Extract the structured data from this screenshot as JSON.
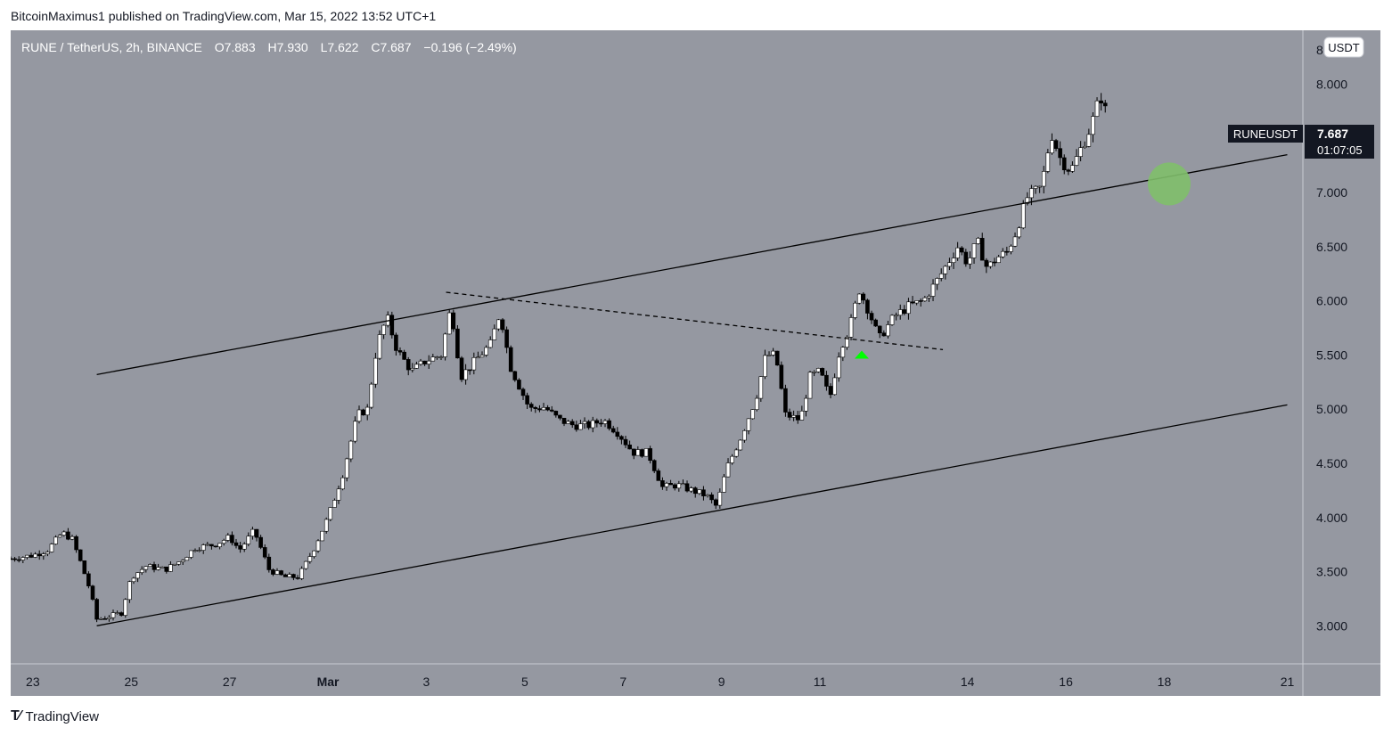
{
  "header": {
    "publisher": "BitcoinMaximus1 published on TradingView.com, Mar 15, 2022 13:52 UTC+1"
  },
  "footer": {
    "brand": "TradingView",
    "logo_icon": "tradingview-logo-icon"
  },
  "symbol_info": {
    "name": "RUNE / TetherUS, 2h, BINANCE",
    "o_label": "O",
    "o_value": "7.883",
    "h_label": "H",
    "h_value": "7.930",
    "l_label": "L",
    "l_value": "7.622",
    "c_label": "C",
    "c_value": "7.687",
    "change": "−0.196 (−2.49%)"
  },
  "price_tag": {
    "ticker": "RUNEUSDT",
    "price": "7.687",
    "countdown": "01:07:05"
  },
  "currency_label": "USDT",
  "colors": {
    "background": "#9598a1",
    "candle_up": "#ffffff",
    "candle_down": "#000000",
    "line": "#000000",
    "marker_arrow": "#00ff00",
    "target_circle": "#7fbf6a"
  },
  "chart_data": {
    "type": "candlestick",
    "title": "",
    "xlabel": "",
    "ylabel": "",
    "ylim": [
      2.55,
      8.4
    ],
    "y_axis": {
      "ticks": [
        3.0,
        3.5,
        4.0,
        4.5,
        5.0,
        5.5,
        6.0,
        6.5,
        7.0,
        7.5,
        8.0
      ],
      "tick_labels": [
        "3.000",
        "3.500",
        "4.000",
        "4.500",
        "5.000",
        "5.500",
        "6.000",
        "6.500",
        "7.000",
        "7.500",
        "8.000"
      ],
      "top_label": "8"
    },
    "x_axis": {
      "range_days": [
        22.55,
        39.3
      ],
      "tick_days": [
        23,
        25,
        27,
        29,
        31,
        33,
        35,
        37,
        39,
        42,
        44,
        46,
        48.5
      ],
      "tick_labels": [
        "23",
        "25",
        "27",
        "Mar",
        "3",
        "5",
        "7",
        "9",
        "11",
        "14",
        "16",
        "18",
        "21"
      ]
    },
    "price_path": [
      {
        "x": 22.55,
        "y": 3.62
      },
      {
        "x": 23.0,
        "y": 3.65
      },
      {
        "x": 23.3,
        "y": 3.7
      },
      {
        "x": 23.6,
        "y": 3.86
      },
      {
        "x": 23.8,
        "y": 3.8
      },
      {
        "x": 24.0,
        "y": 3.55
      },
      {
        "x": 24.15,
        "y": 3.35
      },
      {
        "x": 24.3,
        "y": 3.06
      },
      {
        "x": 24.5,
        "y": 3.08
      },
      {
        "x": 24.8,
        "y": 3.12
      },
      {
        "x": 25.0,
        "y": 3.45
      },
      {
        "x": 25.3,
        "y": 3.55
      },
      {
        "x": 25.7,
        "y": 3.52
      },
      {
        "x": 26.0,
        "y": 3.6
      },
      {
        "x": 26.3,
        "y": 3.72
      },
      {
        "x": 26.7,
        "y": 3.75
      },
      {
        "x": 27.0,
        "y": 3.82
      },
      {
        "x": 27.2,
        "y": 3.7
      },
      {
        "x": 27.5,
        "y": 3.88
      },
      {
        "x": 27.8,
        "y": 3.52
      },
      {
        "x": 28.1,
        "y": 3.45
      },
      {
        "x": 28.4,
        "y": 3.45
      },
      {
        "x": 28.7,
        "y": 3.7
      },
      {
        "x": 29.0,
        "y": 4.0
      },
      {
        "x": 29.3,
        "y": 4.4
      },
      {
        "x": 29.6,
        "y": 4.95
      },
      {
        "x": 29.8,
        "y": 5.0
      },
      {
        "x": 30.0,
        "y": 5.6
      },
      {
        "x": 30.2,
        "y": 5.85
      },
      {
        "x": 30.4,
        "y": 5.55
      },
      {
        "x": 30.7,
        "y": 5.35
      },
      {
        "x": 31.0,
        "y": 5.45
      },
      {
        "x": 31.3,
        "y": 5.5
      },
      {
        "x": 31.5,
        "y": 5.95
      },
      {
        "x": 31.7,
        "y": 5.3
      },
      {
        "x": 32.0,
        "y": 5.45
      },
      {
        "x": 32.3,
        "y": 5.6
      },
      {
        "x": 32.5,
        "y": 5.9
      },
      {
        "x": 32.7,
        "y": 5.4
      },
      {
        "x": 32.9,
        "y": 5.2
      },
      {
        "x": 33.1,
        "y": 5.0
      },
      {
        "x": 33.4,
        "y": 5.02
      },
      {
        "x": 33.7,
        "y": 4.9
      },
      {
        "x": 34.0,
        "y": 4.85
      },
      {
        "x": 34.3,
        "y": 4.85
      },
      {
        "x": 34.6,
        "y": 4.9
      },
      {
        "x": 34.9,
        "y": 4.78
      },
      {
        "x": 35.2,
        "y": 4.6
      },
      {
        "x": 35.5,
        "y": 4.6
      },
      {
        "x": 35.8,
        "y": 4.28
      },
      {
        "x": 36.1,
        "y": 4.3
      },
      {
        "x": 36.4,
        "y": 4.25
      },
      {
        "x": 36.7,
        "y": 4.2
      },
      {
        "x": 36.9,
        "y": 4.1
      },
      {
        "x": 37.1,
        "y": 4.45
      },
      {
        "x": 37.4,
        "y": 4.75
      },
      {
        "x": 37.7,
        "y": 5.1
      },
      {
        "x": 37.9,
        "y": 5.5
      },
      {
        "x": 38.1,
        "y": 5.5
      },
      {
        "x": 38.3,
        "y": 4.95
      },
      {
        "x": 38.6,
        "y": 4.9
      },
      {
        "x": 38.8,
        "y": 5.3
      },
      {
        "x": 39.0,
        "y": 5.35
      },
      {
        "x": 39.2,
        "y": 5.1
      },
      {
        "x": 39.4,
        "y": 5.55
      },
      {
        "x": 39.6,
        "y": 5.75
      },
      {
        "x": 39.8,
        "y": 6.1
      },
      {
        "x": 40.0,
        "y": 5.9
      },
      {
        "x": 40.2,
        "y": 5.65
      },
      {
        "x": 40.5,
        "y": 5.85
      },
      {
        "x": 40.8,
        "y": 5.95
      },
      {
        "x": 41.1,
        "y": 6.0
      },
      {
        "x": 41.4,
        "y": 6.2
      },
      {
        "x": 41.6,
        "y": 6.35
      },
      {
        "x": 41.8,
        "y": 6.5
      },
      {
        "x": 42.0,
        "y": 6.35
      },
      {
        "x": 42.2,
        "y": 6.55
      },
      {
        "x": 42.4,
        "y": 6.3
      },
      {
        "x": 42.6,
        "y": 6.4
      },
      {
        "x": 42.8,
        "y": 6.45
      },
      {
        "x": 43.0,
        "y": 6.65
      },
      {
        "x": 43.2,
        "y": 6.95
      },
      {
        "x": 43.5,
        "y": 7.05
      },
      {
        "x": 43.7,
        "y": 7.55
      },
      {
        "x": 43.9,
        "y": 7.3
      },
      {
        "x": 44.1,
        "y": 7.2
      },
      {
        "x": 44.3,
        "y": 7.4
      },
      {
        "x": 44.5,
        "y": 7.6
      },
      {
        "x": 44.7,
        "y": 7.9
      },
      {
        "x": 44.85,
        "y": 7.69
      }
    ],
    "trendlines": [
      {
        "name": "channel-upper",
        "style": "solid",
        "points": [
          {
            "x": 24.3,
            "y": 5.32
          },
          {
            "x": 48.5,
            "y": 7.35
          }
        ]
      },
      {
        "name": "channel-lower",
        "style": "solid",
        "points": [
          {
            "x": 24.3,
            "y": 3.0
          },
          {
            "x": 48.5,
            "y": 5.04
          }
        ]
      },
      {
        "name": "descending-resistance",
        "style": "dashed",
        "points": [
          {
            "x": 31.4,
            "y": 6.08
          },
          {
            "x": 41.5,
            "y": 5.55
          }
        ]
      }
    ],
    "markers": [
      {
        "name": "breakout-arrow",
        "shape": "triangle-up",
        "x": 39.85,
        "y": 5.5,
        "color": "#00ff00"
      },
      {
        "name": "target-circle",
        "shape": "circle",
        "x": 46.1,
        "y": 7.08,
        "color": "#7fbf6a"
      }
    ]
  }
}
